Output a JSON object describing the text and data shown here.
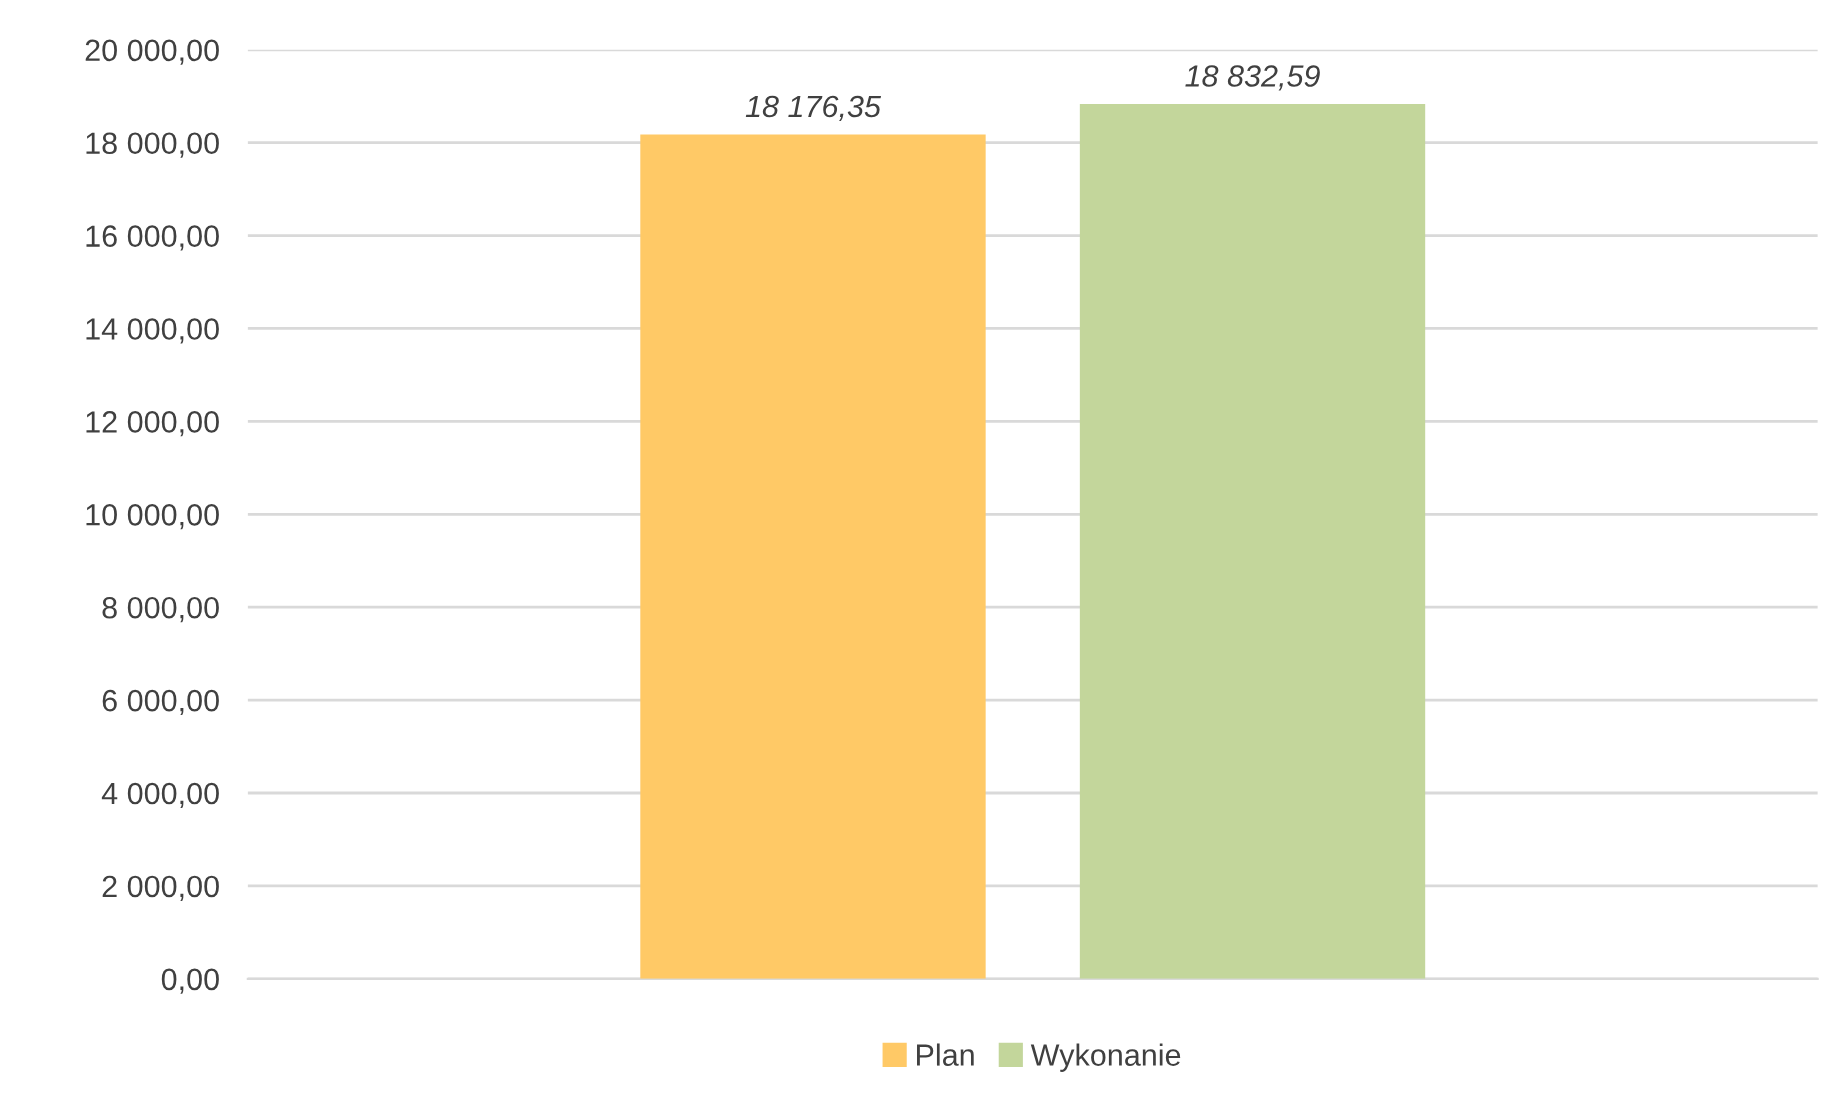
{
  "chart_data": {
    "type": "bar",
    "categories": [
      null
    ],
    "series": [
      {
        "name": "Plan",
        "color": "#ffc966",
        "values": [
          18176.35
        ],
        "value_labels": [
          "18 176,35"
        ]
      },
      {
        "name": "Wykonanie",
        "color": "#c3d69b",
        "values": [
          18832.59
        ],
        "value_labels": [
          "18 832,59"
        ]
      }
    ],
    "ylim": [
      0,
      20000
    ],
    "yticks": [
      {
        "value": 0,
        "label": "0,00"
      },
      {
        "value": 2000,
        "label": "2 000,00"
      },
      {
        "value": 4000,
        "label": "4 000,00"
      },
      {
        "value": 6000,
        "label": "6 000,00"
      },
      {
        "value": 8000,
        "label": "8 000,00"
      },
      {
        "value": 10000,
        "label": "10 000,00"
      },
      {
        "value": 12000,
        "label": "12 000,00"
      },
      {
        "value": 14000,
        "label": "14 000,00"
      },
      {
        "value": 16000,
        "label": "16 000,00"
      },
      {
        "value": 18000,
        "label": "18 000,00"
      },
      {
        "value": 20000,
        "label": "20 000,00"
      }
    ],
    "grid": "y",
    "legend": "bottom"
  }
}
